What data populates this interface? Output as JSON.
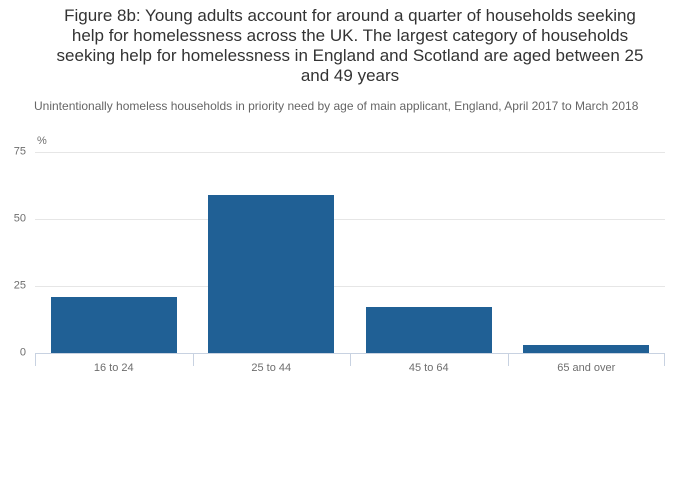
{
  "chart_data": {
    "type": "bar",
    "title": "Figure 8b: Young adults account for around a quarter of households seeking help for homelessness across the UK. The largest category of households seeking help for homelessness in England and Scotland are aged between 25 and 49 years",
    "subtitle": "Unintentionally homeless households in priority need by age of main applicant, England, April 2017 to March 2018",
    "categories": [
      "16 to 24",
      "25 to 44",
      "45 to 64",
      "65 and over"
    ],
    "values": [
      21,
      59,
      17,
      3
    ],
    "xlabel": "",
    "ylabel": "%",
    "ylim": [
      0,
      75
    ],
    "yticks": [
      0,
      25,
      50,
      75
    ],
    "grid": true,
    "legend": false,
    "bar_width_fraction": 0.8
  },
  "colors": {
    "bar": "#206095",
    "gridline": "#e6e6e6",
    "axis_line": "#c8d2e1",
    "title_text": "#333333",
    "subtitle_text": "#666666",
    "tick_label": "#6e6e6e"
  }
}
